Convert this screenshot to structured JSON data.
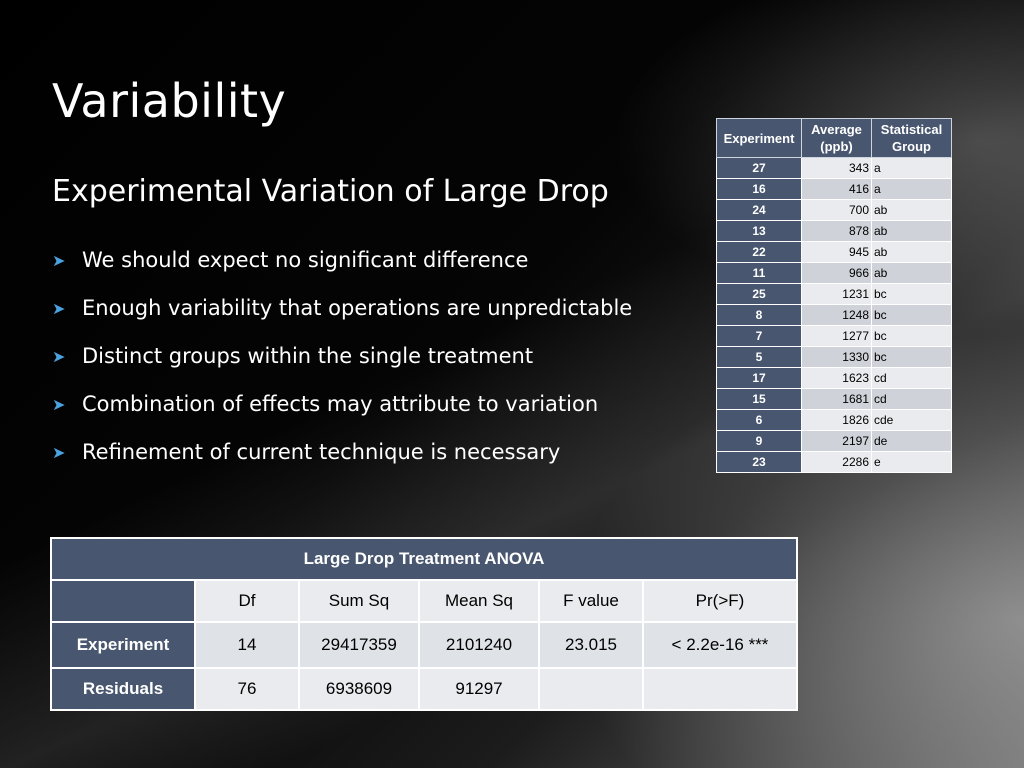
{
  "slide": {
    "title": "Variability",
    "subtitle": "Experimental Variation of Large Drop",
    "bullets": [
      "We should expect no significant difference",
      "Enough variability that operations are unpredictable",
      "Distinct groups within the single treatment",
      "Combination of effects may attribute to variation",
      "Refinement of current technique is necessary"
    ]
  },
  "experiment_table": {
    "headers": [
      "Experiment",
      "Average (ppb)",
      "Statistical Group"
    ],
    "rows": [
      [
        "27",
        "343",
        "a"
      ],
      [
        "16",
        "416",
        "a"
      ],
      [
        "24",
        "700",
        "ab"
      ],
      [
        "13",
        "878",
        "ab"
      ],
      [
        "22",
        "945",
        "ab"
      ],
      [
        "11",
        "966",
        "ab"
      ],
      [
        "25",
        "1231",
        "bc"
      ],
      [
        "8",
        "1248",
        "bc"
      ],
      [
        "7",
        "1277",
        "bc"
      ],
      [
        "5",
        "1330",
        "bc"
      ],
      [
        "17",
        "1623",
        "cd"
      ],
      [
        "15",
        "1681",
        "cd"
      ],
      [
        "6",
        "1826",
        "cde"
      ],
      [
        "9",
        "2197",
        "de"
      ],
      [
        "23",
        "2286",
        "e"
      ]
    ]
  },
  "anova_table": {
    "caption": "Large Drop Treatment ANOVA",
    "columns": [
      "",
      "Df",
      "Sum Sq",
      "Mean Sq",
      "F value",
      "Pr(>F)"
    ],
    "rows": [
      [
        "Experiment",
        "14",
        "29417359",
        "2101240",
        "23.015",
        "< 2.2e-16 ***"
      ],
      [
        "Residuals",
        "76",
        "6938609",
        "91297",
        "",
        ""
      ]
    ]
  },
  "colors": {
    "header_blue": "#48566f",
    "bullet_arrow": "#4aa3e0"
  }
}
